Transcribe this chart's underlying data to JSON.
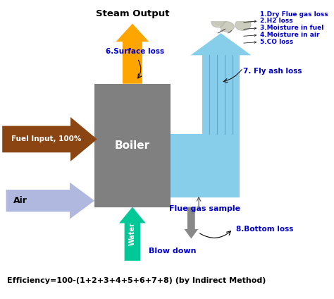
{
  "background_color": "#ffffff",
  "boiler_label": "Boiler",
  "boiler_color": "#808080",
  "title_text": "Steam Output",
  "bottom_text": "Efficiency=100-(1+2+3+4+5+6+7+8) (by Indirect Method)",
  "fuel_color": "#8B4513",
  "air_color": "#b0b8e0",
  "water_color": "#00c896",
  "steam_color": "#FFA500",
  "flue_color": "#87CEEB",
  "blue_color": "#0000CD",
  "blow_color": "#888888",
  "cloud_color": "#c8c8b8",
  "cloud_edge": "#aaaaaa"
}
